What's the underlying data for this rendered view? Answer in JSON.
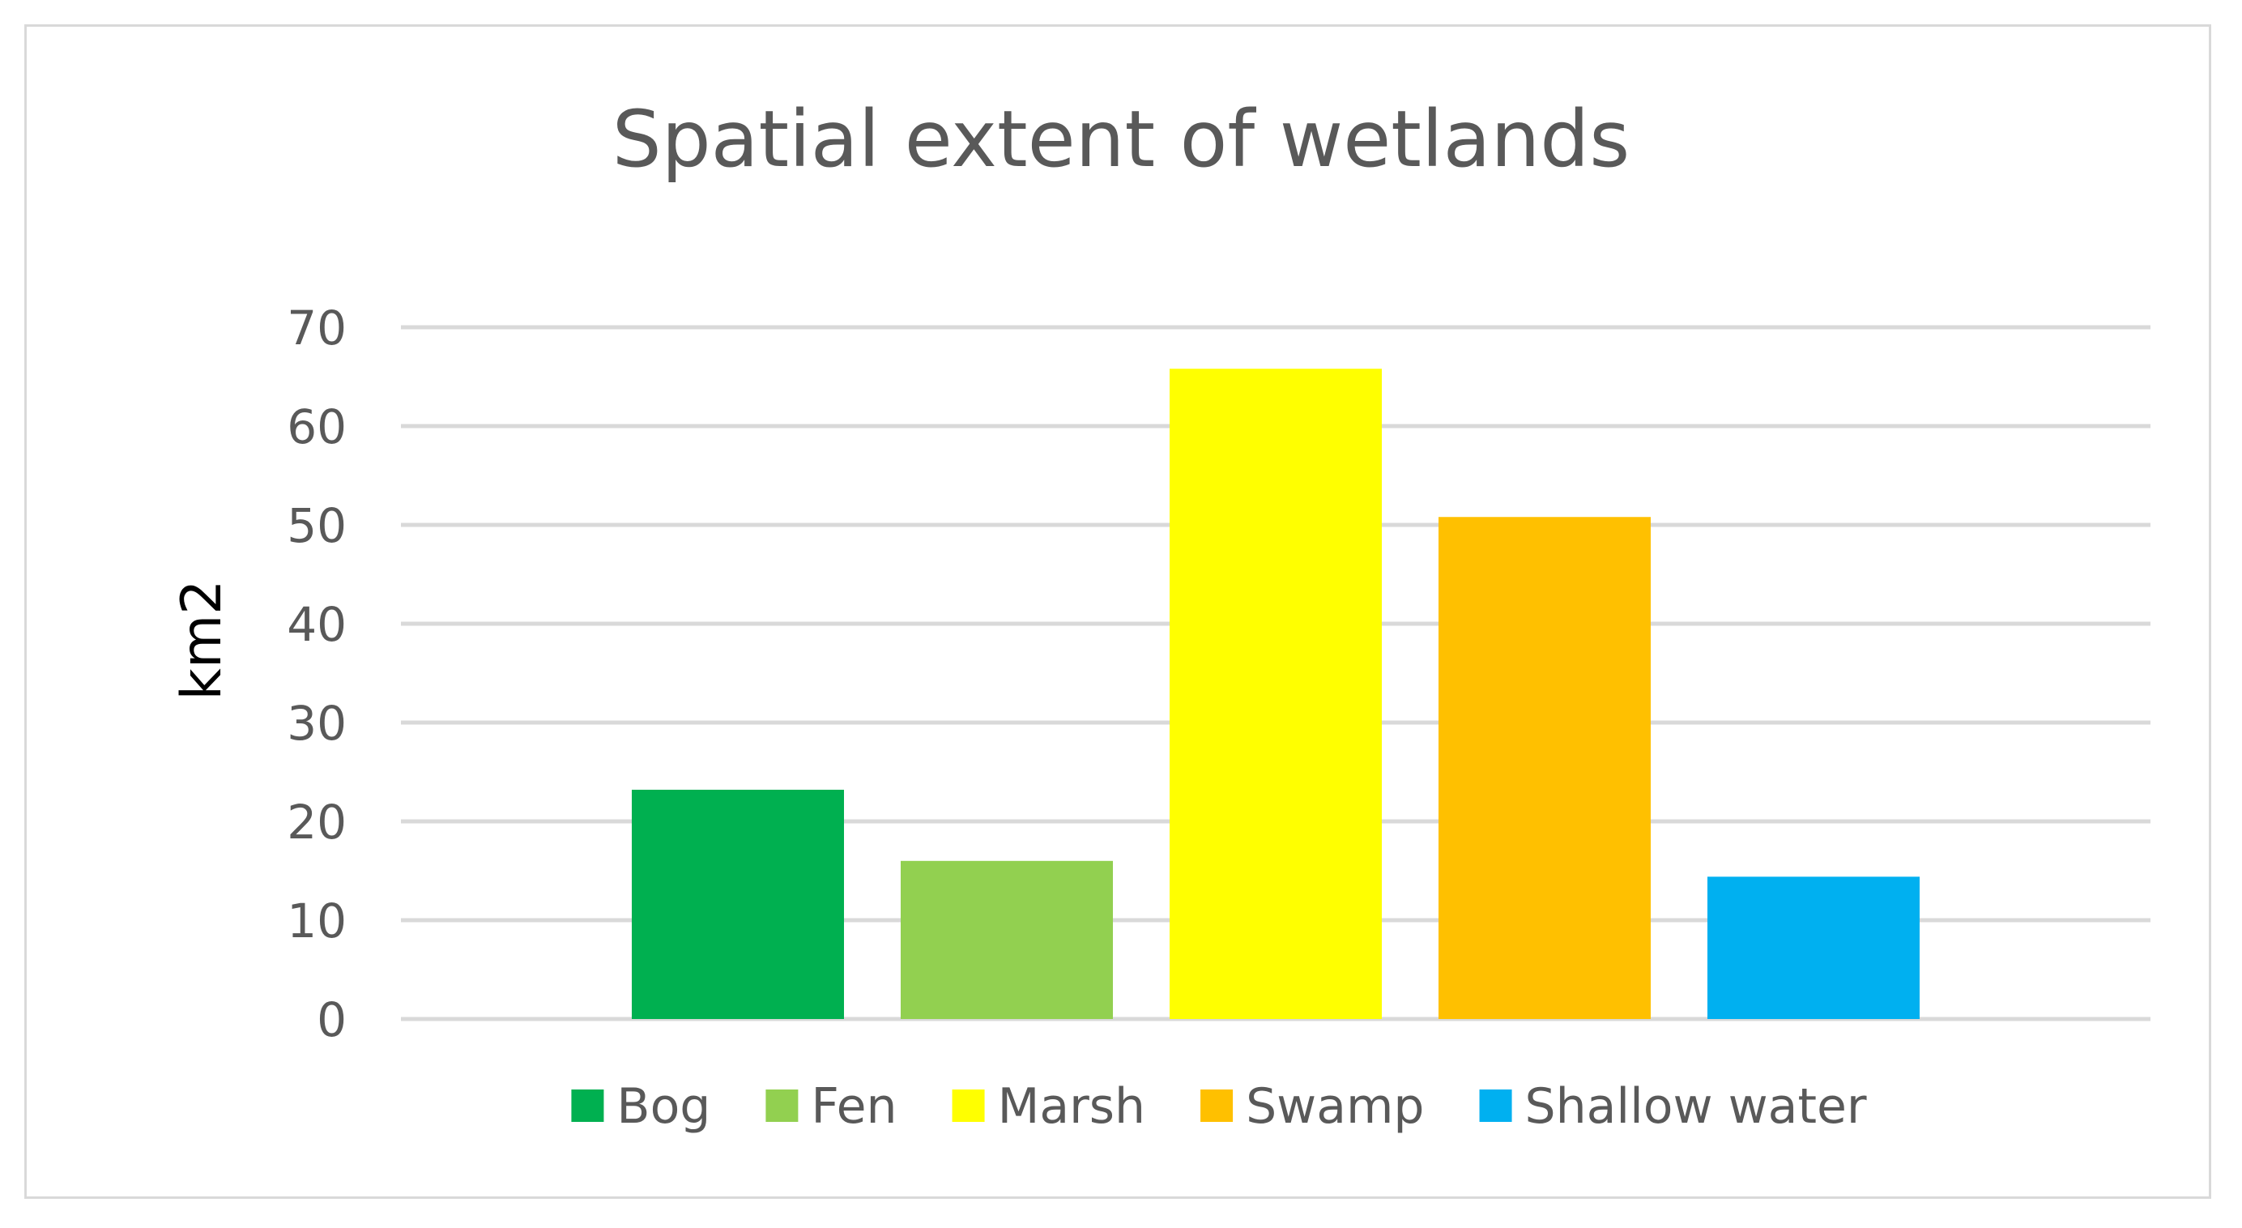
{
  "chart_data": {
    "type": "bar",
    "title": "Spatial extent of wetlands",
    "xlabel": "",
    "ylabel": "km2",
    "ylim": [
      0,
      70
    ],
    "yticks": [
      0,
      10,
      20,
      30,
      40,
      50,
      60,
      70
    ],
    "grid": true,
    "legend_position": "bottom",
    "categories": [
      ""
    ],
    "series": [
      {
        "name": "Bog",
        "values": [
          23.2
        ],
        "color": "#00b050"
      },
      {
        "name": "Fen",
        "values": [
          16.0
        ],
        "color": "#92d050"
      },
      {
        "name": "Marsh",
        "values": [
          65.8
        ],
        "color": "#ffff00"
      },
      {
        "name": "Swamp",
        "values": [
          50.8
        ],
        "color": "#ffc000"
      },
      {
        "name": "Shallow water",
        "values": [
          14.4
        ],
        "color": "#00b0f0"
      }
    ],
    "colors": {
      "gridline": "#d9d9d9",
      "frame": "#d9d9d9",
      "text": "#595959"
    }
  }
}
